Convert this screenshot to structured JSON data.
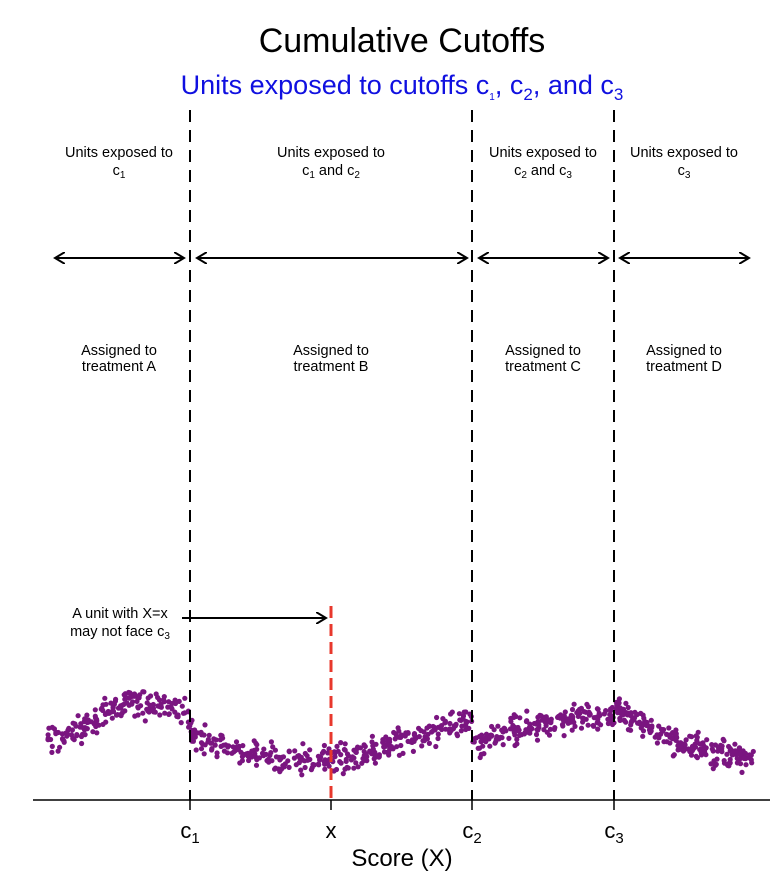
{
  "title": "Cumulative Cutoffs",
  "subtitle": {
    "text": "Units exposed to cutoffs c",
    "sep1": ", c",
    "sep2": ", and c",
    "sub1": "1",
    "sub2": "2",
    "sub3": "3",
    "color": "#1010e0"
  },
  "regions": [
    {
      "exposed_line1": "Units exposed to",
      "exposed_line2_pre": "c",
      "sub_a": "1",
      "mid": "",
      "sub_b": "",
      "assigned_line1": "Assigned to",
      "assigned_line2": "treatment A"
    },
    {
      "exposed_line1": "Units exposed to",
      "exposed_line2_pre": "c",
      "sub_a": "1",
      "mid": " and c",
      "sub_b": "2",
      "assigned_line1": "Assigned to",
      "assigned_line2": "treatment B"
    },
    {
      "exposed_line1": "Units exposed to",
      "exposed_line2_pre": "c",
      "sub_a": "2",
      "mid": " and c",
      "sub_b": "3",
      "assigned_line1": "Assigned to",
      "assigned_line2": "treatment C"
    },
    {
      "exposed_line1": "Units exposed to",
      "exposed_line2_pre": "c",
      "sub_a": "3",
      "mid": "",
      "sub_b": "",
      "assigned_line1": "Assigned to",
      "assigned_line2": "treatment D"
    }
  ],
  "annotation": {
    "line1": "A unit with X=x",
    "line2_pre": "may not face c",
    "line2_sub": "3"
  },
  "axis": {
    "ticks": [
      {
        "label": "c",
        "sub": "1"
      },
      {
        "label": "x",
        "sub": ""
      },
      {
        "label": "c",
        "sub": "2"
      },
      {
        "label": "c",
        "sub": "3"
      }
    ],
    "xlabel": "Score (X)"
  },
  "colors": {
    "points": "#7a1580",
    "x_marker": "#e8382c",
    "subtitle": "#1010e0"
  }
}
